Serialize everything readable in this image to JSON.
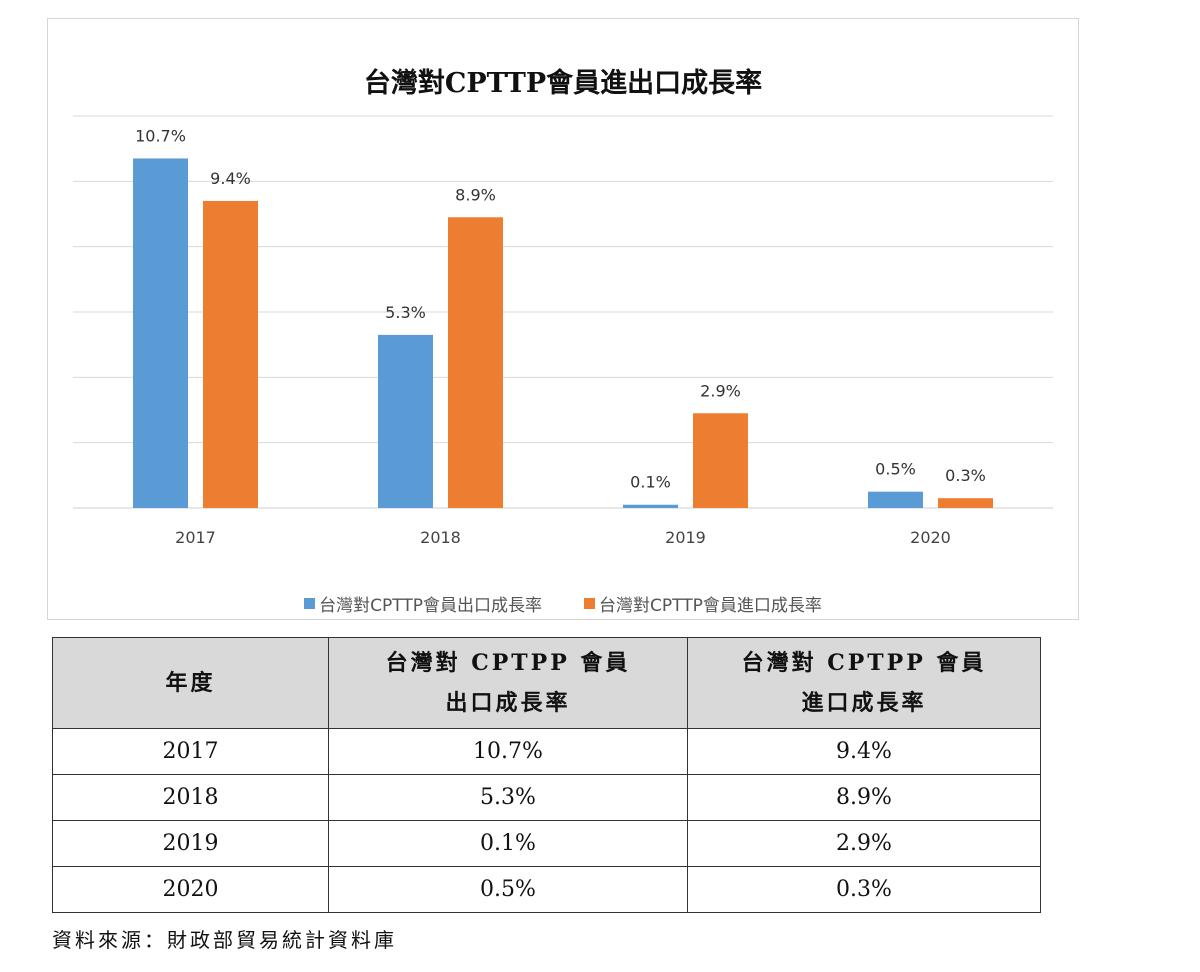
{
  "chart_data": {
    "type": "bar",
    "title": "台灣對CPTTP會員進出口成長率",
    "categories": [
      "2017",
      "2018",
      "2019",
      "2020"
    ],
    "series": [
      {
        "name": "台灣對CPTTP會員出口成長率",
        "values": [
          10.7,
          5.3,
          0.1,
          0.5
        ],
        "labels": [
          "10.7%",
          "5.3%",
          "0.1%",
          "0.5%"
        ],
        "color": "#5b9bd5"
      },
      {
        "name": "台灣對CPTTP會員進口成長率",
        "values": [
          9.4,
          8.9,
          2.9,
          0.3
        ],
        "labels": [
          "9.4%",
          "8.9%",
          "2.9%",
          "0.3%"
        ],
        "color": "#ed7d31"
      }
    ],
    "ylim": [
      0,
      12
    ],
    "grid": true,
    "legend": "bottom"
  },
  "table": {
    "headers": {
      "year": "年度",
      "export_line1": "台灣對 CPTPP 會員",
      "export_line2": "出口成長率",
      "import_line1": "台灣對 CPTPP 會員",
      "import_line2": "進口成長率"
    },
    "rows": [
      {
        "year": "2017",
        "export": "10.7%",
        "import": "9.4%"
      },
      {
        "year": "2018",
        "export": "5.3%",
        "import": "8.9%"
      },
      {
        "year": "2019",
        "export": "0.1%",
        "import": "2.9%"
      },
      {
        "year": "2020",
        "export": "0.5%",
        "import": "0.3%"
      }
    ]
  },
  "source": "資料來源：財政部貿易統計資料庫"
}
